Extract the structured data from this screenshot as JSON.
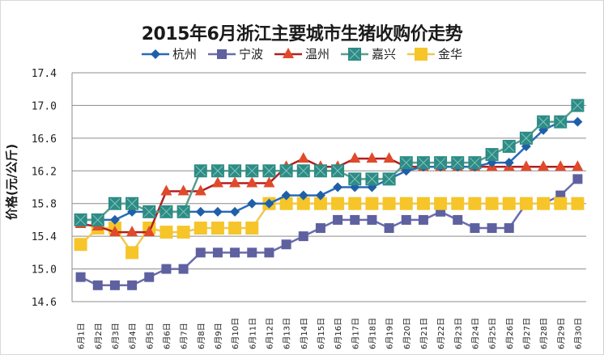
{
  "chart_data": {
    "type": "line",
    "title": "2015年6月浙江主要城市生猪收购价走势",
    "xlabel": "",
    "ylabel": "价格(元/公斤)",
    "ylim": [
      14.6,
      17.4
    ],
    "yticks": [
      17.4,
      17.0,
      16.6,
      16.2,
      15.8,
      15.4,
      15.0,
      14.6
    ],
    "ytick_labels": [
      "17.4",
      "17.0",
      "16.6",
      "16.2",
      "15.8",
      "15.4",
      "15.0",
      "14.6"
    ],
    "grid": true,
    "legend_position": "top-center",
    "categories": [
      "6月1日",
      "6月2日",
      "6月3日",
      "6月4日",
      "6月5日",
      "6月6日",
      "6月7日",
      "6月8日",
      "6月9日",
      "6月10日",
      "6月11日",
      "6月12日",
      "6月13日",
      "6月14日",
      "6月15日",
      "6月16日",
      "6月17日",
      "6月18日",
      "6月19日",
      "6月20日",
      "6月21日",
      "6月22日",
      "6月23日",
      "6月24日",
      "6月25日",
      "6月26日",
      "6月27日",
      "6月28日",
      "6月29日",
      "6月30日"
    ],
    "series": [
      {
        "name": "杭州",
        "marker": "diamond",
        "color": "#1F5FA8",
        "line_color": "#2A6AB6",
        "values": [
          15.6,
          15.6,
          15.6,
          15.7,
          15.7,
          15.7,
          15.7,
          15.7,
          15.7,
          15.7,
          15.8,
          15.8,
          15.9,
          15.9,
          15.9,
          16.0,
          16.0,
          16.0,
          16.1,
          16.2,
          16.25,
          16.25,
          16.25,
          16.25,
          16.3,
          16.3,
          16.5,
          16.7,
          16.8,
          16.8
        ]
      },
      {
        "name": "宁波",
        "marker": "square",
        "color": "#5E60A0",
        "line_color": "#6A6CA8",
        "values": [
          14.9,
          14.8,
          14.8,
          14.8,
          14.9,
          15.0,
          15.0,
          15.2,
          15.2,
          15.2,
          15.2,
          15.2,
          15.3,
          15.4,
          15.5,
          15.6,
          15.6,
          15.6,
          15.5,
          15.6,
          15.6,
          15.7,
          15.6,
          15.5,
          15.5,
          15.5,
          15.8,
          15.8,
          15.9,
          16.1
        ]
      },
      {
        "name": "温州",
        "marker": "triangle",
        "color": "#E04A2A",
        "line_color": "#B02020",
        "values": [
          15.55,
          15.52,
          15.45,
          15.45,
          15.45,
          15.95,
          15.95,
          15.95,
          16.05,
          16.05,
          16.05,
          16.05,
          16.25,
          16.35,
          16.25,
          16.25,
          16.35,
          16.35,
          16.35,
          16.25,
          16.25,
          16.25,
          16.25,
          16.25,
          16.25,
          16.25,
          16.25,
          16.25,
          16.25,
          16.25
        ]
      },
      {
        "name": "嘉兴",
        "marker": "square-x",
        "color": "#2E8B85",
        "line_color": "#5A9E8A",
        "values": [
          15.6,
          15.6,
          15.8,
          15.8,
          15.7,
          15.7,
          15.7,
          16.2,
          16.2,
          16.2,
          16.2,
          16.2,
          16.2,
          16.2,
          16.2,
          16.2,
          16.1,
          16.1,
          16.1,
          16.3,
          16.3,
          16.3,
          16.3,
          16.3,
          16.4,
          16.5,
          16.6,
          16.8,
          16.8,
          17.0
        ]
      },
      {
        "name": "金华",
        "marker": "square",
        "color": "#F5C52A",
        "line_color": "#F0C850",
        "values": [
          15.3,
          15.5,
          15.5,
          15.2,
          15.5,
          15.45,
          15.45,
          15.5,
          15.5,
          15.5,
          15.5,
          15.8,
          15.8,
          15.8,
          15.8,
          15.8,
          15.8,
          15.8,
          15.8,
          15.8,
          15.8,
          15.8,
          15.8,
          15.8,
          15.8,
          15.8,
          15.8,
          15.8,
          15.8,
          15.8
        ]
      }
    ]
  }
}
